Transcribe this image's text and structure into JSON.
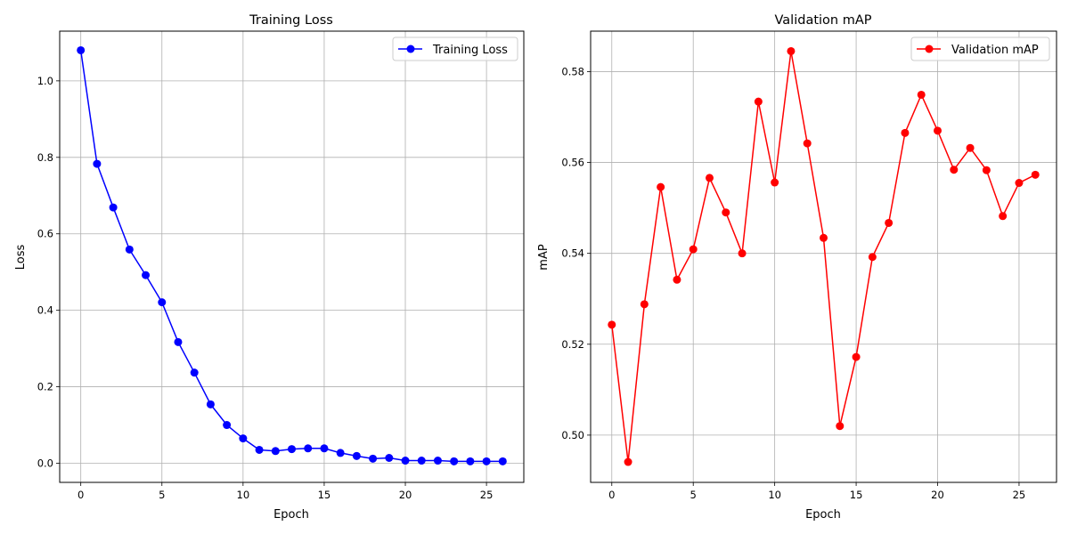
{
  "chart_data": [
    {
      "type": "line",
      "title": "Training Loss",
      "xlabel": "Epoch",
      "ylabel": "Loss",
      "xlim": [
        -1.3,
        27.3
      ],
      "ylim": [
        -0.05,
        1.13
      ],
      "xticks": [
        0,
        5,
        10,
        15,
        20,
        25
      ],
      "xtick_labels": [
        "0",
        "5",
        "10",
        "15",
        "20",
        "25"
      ],
      "yticks": [
        0.0,
        0.2,
        0.4,
        0.6,
        0.8,
        1.0
      ],
      "ytick_labels": [
        "0.0",
        "0.2",
        "0.4",
        "0.6",
        "0.8",
        "1.0"
      ],
      "grid": true,
      "legend_position": "upper right",
      "series": [
        {
          "name": "Training Loss",
          "color": "#0000ff",
          "marker": "circle",
          "x": [
            0,
            1,
            2,
            3,
            4,
            5,
            6,
            7,
            8,
            9,
            10,
            11,
            12,
            13,
            14,
            15,
            16,
            17,
            18,
            19,
            20,
            21,
            22,
            23,
            24,
            25,
            26
          ],
          "values": [
            1.08,
            0.783,
            0.669,
            0.559,
            0.492,
            0.421,
            0.317,
            0.237,
            0.154,
            0.1,
            0.065,
            0.035,
            0.032,
            0.037,
            0.039,
            0.039,
            0.027,
            0.019,
            0.012,
            0.014,
            0.007,
            0.007,
            0.007,
            0.005,
            0.005,
            0.005,
            0.005
          ]
        }
      ]
    },
    {
      "type": "line",
      "title": "Validation mAP",
      "xlabel": "Epoch",
      "ylabel": "mAP",
      "xlim": [
        -1.3,
        27.3
      ],
      "ylim": [
        0.4896,
        0.5889
      ],
      "xticks": [
        0,
        5,
        10,
        15,
        20,
        25
      ],
      "xtick_labels": [
        "0",
        "5",
        "10",
        "15",
        "20",
        "25"
      ],
      "yticks": [
        0.5,
        0.52,
        0.54,
        0.56,
        0.58
      ],
      "ytick_labels": [
        "0.50",
        "0.52",
        "0.54",
        "0.56",
        "0.58"
      ],
      "grid": true,
      "legend_position": "upper right",
      "series": [
        {
          "name": "Validation mAP",
          "color": "#ff0000",
          "marker": "circle",
          "x": [
            0,
            1,
            2,
            3,
            4,
            5,
            6,
            7,
            8,
            9,
            10,
            11,
            12,
            13,
            14,
            15,
            16,
            17,
            18,
            19,
            20,
            21,
            22,
            23,
            24,
            25,
            26
          ],
          "values": [
            0.5243,
            0.4941,
            0.5288,
            0.5546,
            0.5342,
            0.5409,
            0.5566,
            0.549,
            0.54,
            0.5734,
            0.5556,
            0.5845,
            0.5642,
            0.5434,
            0.502,
            0.5172,
            0.5392,
            0.5467,
            0.5665,
            0.5749,
            0.567,
            0.5584,
            0.5632,
            0.5583,
            0.5482,
            0.5555,
            0.5573
          ]
        }
      ]
    }
  ]
}
